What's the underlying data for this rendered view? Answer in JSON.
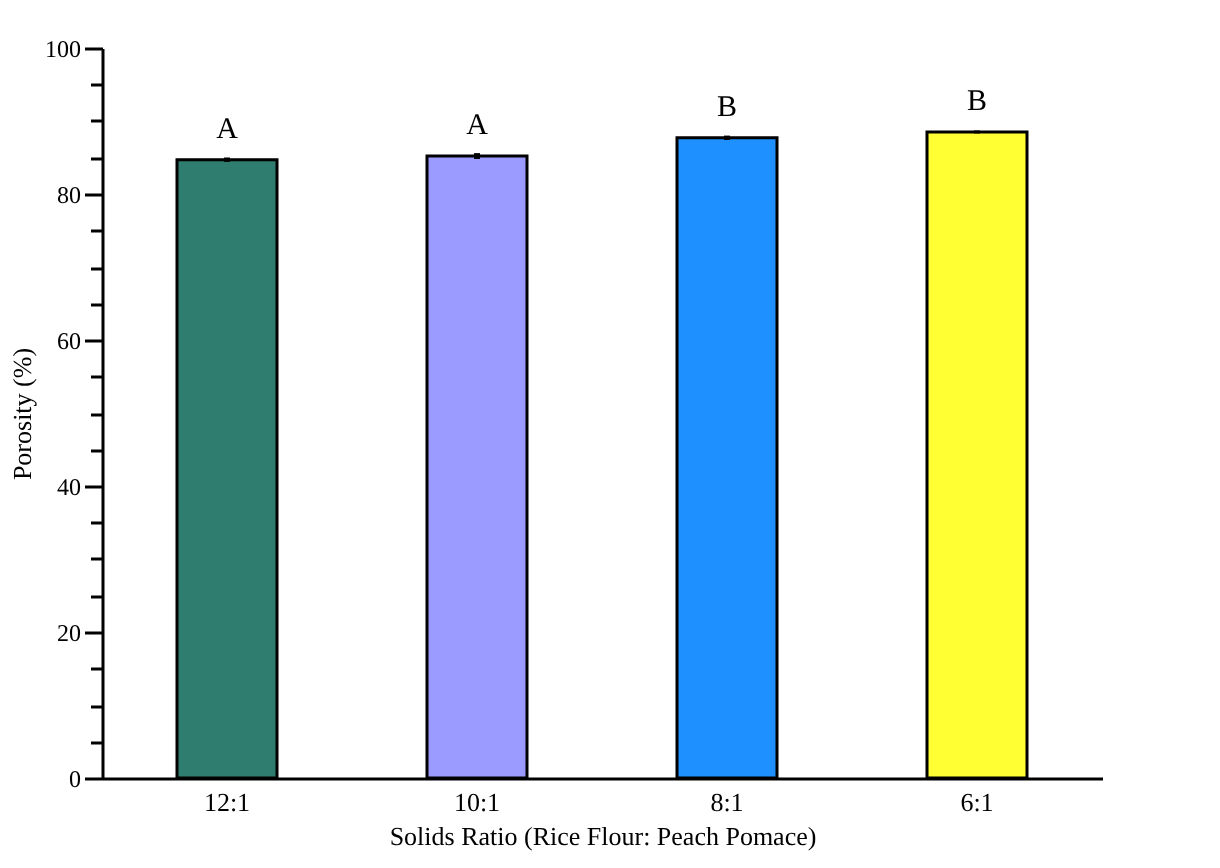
{
  "chart_data": {
    "type": "bar",
    "xlabel": "Solids Ratio (Rice Flour: Peach Pomace)",
    "ylabel": "Porosity (%)",
    "categories": [
      "12:1",
      "10:1",
      "8:1",
      "6:1"
    ],
    "values": [
      84.7,
      85.2,
      87.7,
      88.5
    ],
    "errors": [
      0.3,
      0.4,
      0.3,
      0.2
    ],
    "colors": [
      "#2e7d6e",
      "#9b9bff",
      "#1e90ff",
      "#ffff33"
    ],
    "ylim": [
      0,
      100
    ],
    "yticks": [
      0,
      {
        "value": 5,
        "label": null
      },
      {
        "value": 10,
        "label": null
      },
      {
        "value": 15,
        "label": null
      },
      20,
      {
        "value": 25,
        "label": null
      },
      {
        "value": 30,
        "label": null
      },
      {
        "value": 35,
        "label": null
      },
      40,
      {
        "value": 45,
        "label": null
      },
      {
        "value": 50,
        "label": null
      },
      {
        "value": 55,
        "label": null
      },
      60,
      {
        "value": 65,
        "label": null
      },
      {
        "value": 70,
        "label": null
      },
      {
        "value": 75,
        "label": null
      },
      80,
      {
        "value": 85,
        "label": null
      },
      {
        "value": 90,
        "label": null
      },
      {
        "value": 95,
        "label": null
      },
      100
    ],
    "annotations": [
      {
        "text": "A",
        "x": "12:1",
        "y": 84.7
      },
      {
        "text": "A",
        "x": "10:1",
        "y": 85.2
      },
      {
        "text": "B",
        "x": "8:1",
        "y": 87.7
      },
      {
        "text": "B",
        "x": "6:1",
        "y": 88.5
      }
    ],
    "grid": false
  }
}
